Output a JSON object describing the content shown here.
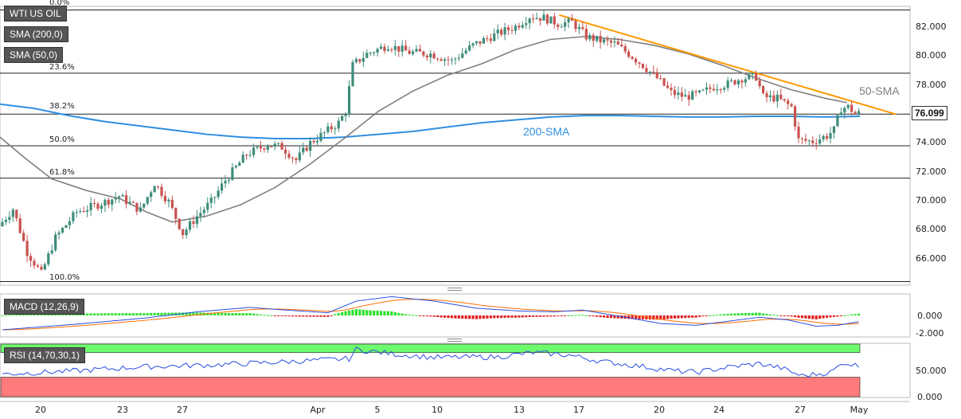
{
  "legend": {
    "symbol": "WTI US OIL",
    "sma200": "SMA (200,0)",
    "sma50": "SMA (50,0)",
    "macd": "MACD (12,26,9)",
    "rsi": "RSI (14,70,30,1)"
  },
  "colors": {
    "up": "#3d8c7a",
    "down": "#c8524f",
    "sma200": "#2e8fe0",
    "sma50": "#808080",
    "trend": "#ff9800",
    "macd": "#2a4de0",
    "signal": "#ff6d00",
    "hist_pos": "#2ee02e",
    "hist_neg": "#e02020",
    "rsi_line": "#2a4de0",
    "overbought": "#6dfa6d",
    "oversold": "#ff7a7a"
  },
  "chart_data": {
    "type": "candlestick",
    "price_axis": {
      "ticks": [
        "82.000",
        "80.000",
        "78.000",
        "76.000",
        "74.000",
        "72.000",
        "70.000",
        "68.000",
        "66.000"
      ],
      "range": [
        64.2,
        83.6
      ]
    },
    "x_ticks": [
      "20",
      "23",
      "27",
      "Apr",
      "5",
      "10",
      "13",
      "17",
      "20",
      "24",
      "27",
      "May"
    ],
    "current_price": "76.099",
    "fibonacci": [
      {
        "label": "0.0%",
        "value": 83.35
      },
      {
        "label": "23.6%",
        "value": 78.95
      },
      {
        "label": "38.2%",
        "value": 76.1
      },
      {
        "label": "50.0%",
        "value": 73.9
      },
      {
        "label": "61.8%",
        "value": 71.65
      },
      {
        "label": "100.0%",
        "value": 64.45
      }
    ],
    "annotations": {
      "sma50_label": "50-SMA",
      "sma200_label": "200-SMA"
    },
    "sma200_points": [
      [
        0,
        76.8
      ],
      [
        8,
        76.5
      ],
      [
        16,
        76.0
      ],
      [
        24,
        75.6
      ],
      [
        32,
        75.3
      ],
      [
        40,
        75.0
      ],
      [
        48,
        74.7
      ],
      [
        56,
        74.5
      ],
      [
        64,
        74.4
      ],
      [
        72,
        74.4
      ],
      [
        80,
        74.5
      ],
      [
        88,
        74.7
      ],
      [
        96,
        74.9
      ],
      [
        104,
        75.2
      ],
      [
        112,
        75.5
      ],
      [
        120,
        75.7
      ],
      [
        128,
        75.9
      ],
      [
        136,
        76.0
      ],
      [
        144,
        76.0
      ],
      [
        152,
        75.95
      ],
      [
        160,
        75.9
      ],
      [
        168,
        75.9
      ],
      [
        176,
        75.95
      ],
      [
        184,
        75.95
      ],
      [
        192,
        75.9
      ],
      [
        200,
        75.95
      ]
    ],
    "sma50_points": [
      [
        0,
        74.5
      ],
      [
        6,
        73.0
      ],
      [
        12,
        71.6
      ],
      [
        20,
        70.8
      ],
      [
        28,
        70.2
      ],
      [
        34,
        69.3
      ],
      [
        40,
        68.6
      ],
      [
        48,
        69.0
      ],
      [
        56,
        69.8
      ],
      [
        64,
        71.0
      ],
      [
        72,
        72.6
      ],
      [
        80,
        74.4
      ],
      [
        88,
        76.3
      ],
      [
        96,
        77.7
      ],
      [
        104,
        78.8
      ],
      [
        112,
        79.6
      ],
      [
        120,
        80.6
      ],
      [
        128,
        81.3
      ],
      [
        136,
        81.5
      ],
      [
        144,
        81.3
      ],
      [
        152,
        80.9
      ],
      [
        160,
        80.3
      ],
      [
        168,
        79.5
      ],
      [
        176,
        78.6
      ],
      [
        184,
        77.8
      ],
      [
        192,
        77.2
      ],
      [
        197,
        76.9
      ]
    ],
    "trend_line": [
      [
        126,
        83.0
      ],
      [
        200,
        76.1
      ]
    ],
    "macd_range": [
      -2.4,
      2.4
    ],
    "macd_ticks": [
      "0.000",
      "-2.000"
    ],
    "rsi_range": [
      -3,
      85
    ],
    "rsi_ticks": [
      "50.000",
      "0.000"
    ],
    "rsi_levels": {
      "overbought": 70,
      "oversold": 30
    }
  }
}
